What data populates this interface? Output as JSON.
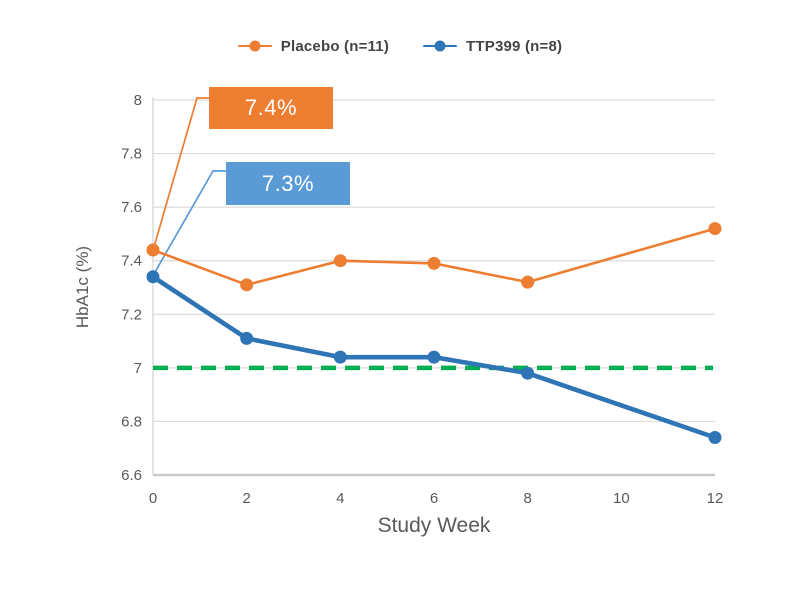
{
  "colors": {
    "placebo": "#ED7D31",
    "ttp399": "#2E75B6",
    "ttp399_callout": "#5B9BD5",
    "leader_blue": "#5B9BD5",
    "target_line": "#00B050",
    "grid": "#DCDCDC",
    "axis": "#C9C9C9",
    "axis_text": "#595959",
    "legend_text": "#444444"
  },
  "legend": {
    "items": [
      {
        "label": "Placebo (n=11)",
        "color": "#ED7D31"
      },
      {
        "label": "TTP399 (n=8)",
        "color": "#2E75B6"
      }
    ]
  },
  "callouts": {
    "placebo_baseline": "7.4%",
    "ttp399_baseline": "7.3%"
  },
  "chart_data": {
    "type": "line",
    "x": [
      0,
      2,
      4,
      6,
      8,
      12
    ],
    "series": [
      {
        "name": "Placebo (n=11)",
        "color": "#ED7D31",
        "values": [
          7.44,
          7.31,
          7.4,
          7.39,
          7.32,
          7.52
        ]
      },
      {
        "name": "TTP399 (n=8)",
        "color": "#2E75B6",
        "values": [
          7.34,
          7.11,
          7.04,
          7.04,
          6.98,
          6.74
        ]
      }
    ],
    "reference_line": {
      "value": 7.0,
      "style": "dashed",
      "color": "#00B050"
    },
    "annotations": [
      {
        "text": "7.4%",
        "series": "Placebo (n=11)",
        "points_to_week": 0
      },
      {
        "text": "7.3%",
        "series": "TTP399 (n=8)",
        "points_to_week": 0
      }
    ],
    "title": "",
    "xlabel": "Study Week",
    "ylabel": "HbA1c (%)",
    "xlim": [
      0,
      12
    ],
    "ylim": [
      6.6,
      8.0
    ],
    "x_ticks": [
      0,
      2,
      4,
      6,
      8,
      10,
      12
    ],
    "y_ticks": [
      6.6,
      6.8,
      7,
      7.2,
      7.4,
      7.6,
      7.8,
      8
    ],
    "grid": "horizontal",
    "legend_position": "top"
  }
}
